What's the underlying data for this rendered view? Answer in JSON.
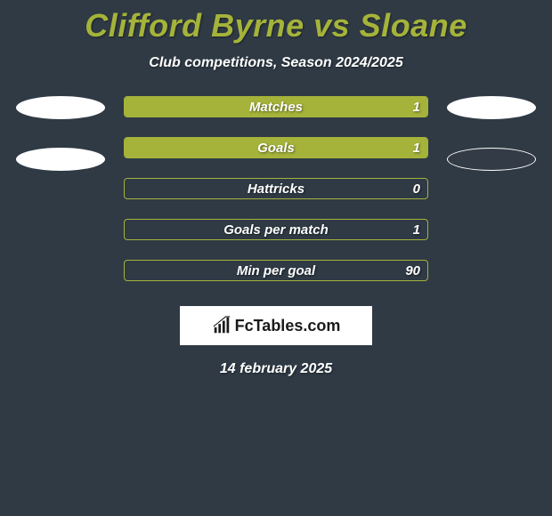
{
  "header": {
    "title": "Clifford Byrne vs Sloane",
    "title_color": "#a5b33a",
    "title_fontsize": 36,
    "subtitle": "Club competitions, Season 2024/2025",
    "subtitle_color": "#ffffff",
    "subtitle_fontsize": 16
  },
  "background_color": "#2f3a45",
  "ellipse": {
    "left": [
      {
        "fill": "#ffffff"
      },
      {
        "fill": "#ffffff"
      }
    ],
    "right": [
      {
        "fill": "#ffffff"
      },
      {
        "fill": "#333c46",
        "border": "#ffffff"
      }
    ]
  },
  "bars": {
    "border_color": "#a5b33a",
    "fill_color": "#a5b33a",
    "text_color": "#ffffff",
    "items": [
      {
        "label": "Matches",
        "value": "1",
        "fill_pct": 100
      },
      {
        "label": "Goals",
        "value": "1",
        "fill_pct": 100
      },
      {
        "label": "Hattricks",
        "value": "0",
        "fill_pct": 0
      },
      {
        "label": "Goals per match",
        "value": "1",
        "fill_pct": 0
      },
      {
        "label": "Min per goal",
        "value": "90",
        "fill_pct": 0
      }
    ]
  },
  "logo": {
    "text": "FcTables.com",
    "box_bg": "#ffffff",
    "text_color": "#1a1a1a"
  },
  "footer": {
    "date": "14 february 2025",
    "color": "#ffffff"
  }
}
